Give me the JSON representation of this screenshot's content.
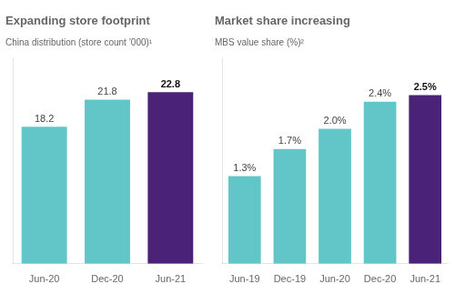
{
  "chart_data": [
    {
      "type": "bar",
      "title": "Expanding store footprint",
      "subtitle": "China distribution (store count ’000)¹",
      "categories": [
        "Jun-20",
        "Dec-20",
        "Jun-21"
      ],
      "values": [
        18.2,
        21.8,
        22.8
      ],
      "colors": [
        "#62C6C8",
        "#62C6C8",
        "#4A2378"
      ],
      "ylim": [
        0,
        27.36
      ],
      "grid": false,
      "data_labels": true,
      "tick_labels": "x"
    },
    {
      "type": "bar",
      "title": "Market share increasing",
      "subtitle": "MBS value share (%)²",
      "categories": [
        "Jun-19",
        "Dec-19",
        "Jun-20",
        "Dec-20",
        "Jun-21"
      ],
      "values": [
        1.3,
        1.7,
        2.0,
        2.4,
        2.5
      ],
      "value_labels": [
        "1.3%",
        "1.7%",
        "2.0%",
        "2.4%",
        "2.5%"
      ],
      "colors": [
        "#62C6C8",
        "#62C6C8",
        "#62C6C8",
        "#62C6C8",
        "#4A2378"
      ],
      "ylim": [
        0,
        3.05
      ],
      "grid": false,
      "data_labels": true,
      "tick_labels": "x"
    }
  ]
}
